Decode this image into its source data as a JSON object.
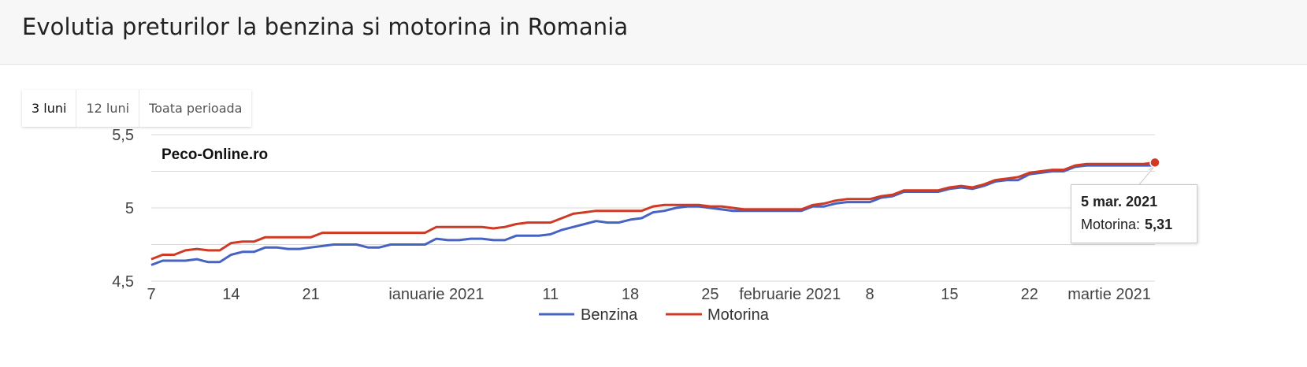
{
  "page": {
    "title": "Evolutia preturilor la benzina si motorina in Romania"
  },
  "range_selector": [
    {
      "label": "3 luni",
      "active": true
    },
    {
      "label": "12 luni",
      "active": false
    },
    {
      "label": "Toata perioada",
      "active": false
    }
  ],
  "tooltip": {
    "date": "5 mar. 2021",
    "series": "Motorina:",
    "value": "5,31"
  },
  "chart_data": {
    "type": "line",
    "watermark": "Peco-Online.ro",
    "ylim": [
      4.5,
      5.5
    ],
    "y_ticks": [
      {
        "value": 4.5,
        "label": "4,5"
      },
      {
        "value": 5.0,
        "label": "5"
      },
      {
        "value": 5.5,
        "label": "5,5"
      }
    ],
    "x_range": [
      "2020-12-07",
      "2021-03-05"
    ],
    "x_ticks": [
      {
        "date": "2020-12-07",
        "label": "7"
      },
      {
        "date": "2020-12-14",
        "label": "14"
      },
      {
        "date": "2020-12-21",
        "label": "21"
      },
      {
        "date": "2021-01-01",
        "label": "ianuarie 2021"
      },
      {
        "date": "2021-01-11",
        "label": "11"
      },
      {
        "date": "2021-01-18",
        "label": "18"
      },
      {
        "date": "2021-01-25",
        "label": "25"
      },
      {
        "date": "2021-02-01",
        "label": "februarie 2021"
      },
      {
        "date": "2021-02-08",
        "label": "8"
      },
      {
        "date": "2021-02-15",
        "label": "15"
      },
      {
        "date": "2021-02-22",
        "label": "22"
      },
      {
        "date": "2021-03-01",
        "label": "martie 2021"
      }
    ],
    "grid": true,
    "legend": "bottom",
    "highlight": {
      "series": 1,
      "date": "2021-03-05"
    },
    "series": [
      {
        "name": "Benzina",
        "color": "#4763c2",
        "points": [
          [
            "2020-12-07",
            4.61
          ],
          [
            "2020-12-08",
            4.64
          ],
          [
            "2020-12-09",
            4.64
          ],
          [
            "2020-12-10",
            4.64
          ],
          [
            "2020-12-11",
            4.65
          ],
          [
            "2020-12-12",
            4.63
          ],
          [
            "2020-12-13",
            4.63
          ],
          [
            "2020-12-14",
            4.68
          ],
          [
            "2020-12-15",
            4.7
          ],
          [
            "2020-12-16",
            4.7
          ],
          [
            "2020-12-17",
            4.73
          ],
          [
            "2020-12-18",
            4.73
          ],
          [
            "2020-12-19",
            4.72
          ],
          [
            "2020-12-20",
            4.72
          ],
          [
            "2020-12-21",
            4.73
          ],
          [
            "2020-12-22",
            4.74
          ],
          [
            "2020-12-23",
            4.75
          ],
          [
            "2020-12-24",
            4.75
          ],
          [
            "2020-12-25",
            4.75
          ],
          [
            "2020-12-26",
            4.73
          ],
          [
            "2020-12-27",
            4.73
          ],
          [
            "2020-12-28",
            4.75
          ],
          [
            "2020-12-29",
            4.75
          ],
          [
            "2020-12-30",
            4.75
          ],
          [
            "2020-12-31",
            4.75
          ],
          [
            "2021-01-01",
            4.79
          ],
          [
            "2021-01-02",
            4.78
          ],
          [
            "2021-01-03",
            4.78
          ],
          [
            "2021-01-04",
            4.79
          ],
          [
            "2021-01-05",
            4.79
          ],
          [
            "2021-01-06",
            4.78
          ],
          [
            "2021-01-07",
            4.78
          ],
          [
            "2021-01-08",
            4.81
          ],
          [
            "2021-01-09",
            4.81
          ],
          [
            "2021-01-10",
            4.81
          ],
          [
            "2021-01-11",
            4.82
          ],
          [
            "2021-01-12",
            4.85
          ],
          [
            "2021-01-13",
            4.87
          ],
          [
            "2021-01-14",
            4.89
          ],
          [
            "2021-01-15",
            4.91
          ],
          [
            "2021-01-16",
            4.9
          ],
          [
            "2021-01-17",
            4.9
          ],
          [
            "2021-01-18",
            4.92
          ],
          [
            "2021-01-19",
            4.93
          ],
          [
            "2021-01-20",
            4.97
          ],
          [
            "2021-01-21",
            4.98
          ],
          [
            "2021-01-22",
            5.0
          ],
          [
            "2021-01-23",
            5.01
          ],
          [
            "2021-01-24",
            5.01
          ],
          [
            "2021-01-25",
            5.0
          ],
          [
            "2021-01-26",
            4.99
          ],
          [
            "2021-01-27",
            4.98
          ],
          [
            "2021-01-28",
            4.98
          ],
          [
            "2021-01-29",
            4.98
          ],
          [
            "2021-01-30",
            4.98
          ],
          [
            "2021-01-31",
            4.98
          ],
          [
            "2021-02-01",
            4.98
          ],
          [
            "2021-02-02",
            4.98
          ],
          [
            "2021-02-03",
            5.01
          ],
          [
            "2021-02-04",
            5.01
          ],
          [
            "2021-02-05",
            5.03
          ],
          [
            "2021-02-06",
            5.04
          ],
          [
            "2021-02-07",
            5.04
          ],
          [
            "2021-02-08",
            5.04
          ],
          [
            "2021-02-09",
            5.07
          ],
          [
            "2021-02-10",
            5.08
          ],
          [
            "2021-02-11",
            5.11
          ],
          [
            "2021-02-12",
            5.11
          ],
          [
            "2021-02-13",
            5.11
          ],
          [
            "2021-02-14",
            5.11
          ],
          [
            "2021-02-15",
            5.13
          ],
          [
            "2021-02-16",
            5.14
          ],
          [
            "2021-02-17",
            5.13
          ],
          [
            "2021-02-18",
            5.15
          ],
          [
            "2021-02-19",
            5.18
          ],
          [
            "2021-02-20",
            5.19
          ],
          [
            "2021-02-21",
            5.19
          ],
          [
            "2021-02-22",
            5.23
          ],
          [
            "2021-02-23",
            5.24
          ],
          [
            "2021-02-24",
            5.25
          ],
          [
            "2021-02-25",
            5.25
          ],
          [
            "2021-02-26",
            5.28
          ],
          [
            "2021-02-27",
            5.29
          ],
          [
            "2021-02-28",
            5.29
          ],
          [
            "2021-03-01",
            5.29
          ],
          [
            "2021-03-02",
            5.29
          ],
          [
            "2021-03-03",
            5.29
          ],
          [
            "2021-03-04",
            5.29
          ],
          [
            "2021-03-05",
            5.29
          ]
        ]
      },
      {
        "name": "Motorina",
        "color": "#cf3a24",
        "points": [
          [
            "2020-12-07",
            4.65
          ],
          [
            "2020-12-08",
            4.68
          ],
          [
            "2020-12-09",
            4.68
          ],
          [
            "2020-12-10",
            4.71
          ],
          [
            "2020-12-11",
            4.72
          ],
          [
            "2020-12-12",
            4.71
          ],
          [
            "2020-12-13",
            4.71
          ],
          [
            "2020-12-14",
            4.76
          ],
          [
            "2020-12-15",
            4.77
          ],
          [
            "2020-12-16",
            4.77
          ],
          [
            "2020-12-17",
            4.8
          ],
          [
            "2020-12-18",
            4.8
          ],
          [
            "2020-12-19",
            4.8
          ],
          [
            "2020-12-20",
            4.8
          ],
          [
            "2020-12-21",
            4.8
          ],
          [
            "2020-12-22",
            4.83
          ],
          [
            "2020-12-23",
            4.83
          ],
          [
            "2020-12-24",
            4.83
          ],
          [
            "2020-12-25",
            4.83
          ],
          [
            "2020-12-26",
            4.83
          ],
          [
            "2020-12-27",
            4.83
          ],
          [
            "2020-12-28",
            4.83
          ],
          [
            "2020-12-29",
            4.83
          ],
          [
            "2020-12-30",
            4.83
          ],
          [
            "2020-12-31",
            4.83
          ],
          [
            "2021-01-01",
            4.87
          ],
          [
            "2021-01-02",
            4.87
          ],
          [
            "2021-01-03",
            4.87
          ],
          [
            "2021-01-04",
            4.87
          ],
          [
            "2021-01-05",
            4.87
          ],
          [
            "2021-01-06",
            4.86
          ],
          [
            "2021-01-07",
            4.87
          ],
          [
            "2021-01-08",
            4.89
          ],
          [
            "2021-01-09",
            4.9
          ],
          [
            "2021-01-10",
            4.9
          ],
          [
            "2021-01-11",
            4.9
          ],
          [
            "2021-01-12",
            4.93
          ],
          [
            "2021-01-13",
            4.96
          ],
          [
            "2021-01-14",
            4.97
          ],
          [
            "2021-01-15",
            4.98
          ],
          [
            "2021-01-16",
            4.98
          ],
          [
            "2021-01-17",
            4.98
          ],
          [
            "2021-01-18",
            4.98
          ],
          [
            "2021-01-19",
            4.98
          ],
          [
            "2021-01-20",
            5.01
          ],
          [
            "2021-01-21",
            5.02
          ],
          [
            "2021-01-22",
            5.02
          ],
          [
            "2021-01-23",
            5.02
          ],
          [
            "2021-01-24",
            5.02
          ],
          [
            "2021-01-25",
            5.01
          ],
          [
            "2021-01-26",
            5.01
          ],
          [
            "2021-01-27",
            5.0
          ],
          [
            "2021-01-28",
            4.99
          ],
          [
            "2021-01-29",
            4.99
          ],
          [
            "2021-01-30",
            4.99
          ],
          [
            "2021-01-31",
            4.99
          ],
          [
            "2021-02-01",
            4.99
          ],
          [
            "2021-02-02",
            4.99
          ],
          [
            "2021-02-03",
            5.02
          ],
          [
            "2021-02-04",
            5.03
          ],
          [
            "2021-02-05",
            5.05
          ],
          [
            "2021-02-06",
            5.06
          ],
          [
            "2021-02-07",
            5.06
          ],
          [
            "2021-02-08",
            5.06
          ],
          [
            "2021-02-09",
            5.08
          ],
          [
            "2021-02-10",
            5.09
          ],
          [
            "2021-02-11",
            5.12
          ],
          [
            "2021-02-12",
            5.12
          ],
          [
            "2021-02-13",
            5.12
          ],
          [
            "2021-02-14",
            5.12
          ],
          [
            "2021-02-15",
            5.14
          ],
          [
            "2021-02-16",
            5.15
          ],
          [
            "2021-02-17",
            5.14
          ],
          [
            "2021-02-18",
            5.16
          ],
          [
            "2021-02-19",
            5.19
          ],
          [
            "2021-02-20",
            5.2
          ],
          [
            "2021-02-21",
            5.21
          ],
          [
            "2021-02-22",
            5.24
          ],
          [
            "2021-02-23",
            5.25
          ],
          [
            "2021-02-24",
            5.26
          ],
          [
            "2021-02-25",
            5.26
          ],
          [
            "2021-02-26",
            5.29
          ],
          [
            "2021-02-27",
            5.3
          ],
          [
            "2021-02-28",
            5.3
          ],
          [
            "2021-03-01",
            5.3
          ],
          [
            "2021-03-02",
            5.3
          ],
          [
            "2021-03-03",
            5.3
          ],
          [
            "2021-03-04",
            5.3
          ],
          [
            "2021-03-05",
            5.31
          ]
        ]
      }
    ]
  }
}
